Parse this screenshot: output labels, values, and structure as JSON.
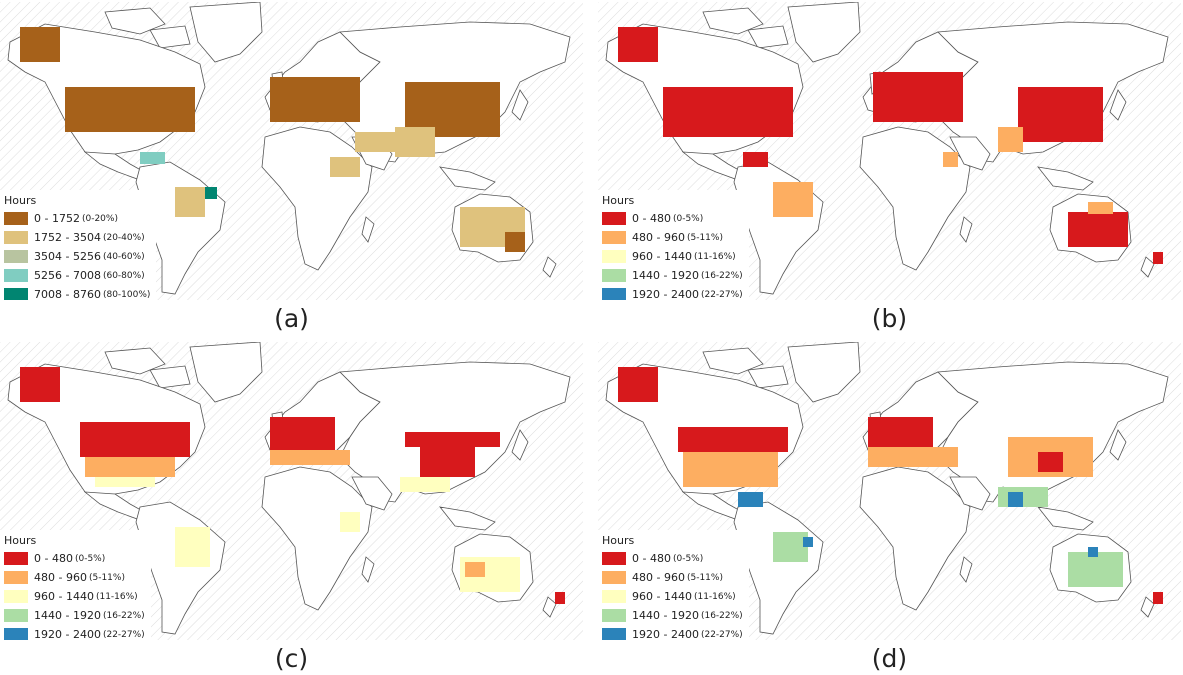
{
  "panels": [
    {
      "caption": "(a)",
      "legend": {
        "title": "Hours",
        "entries": [
          {
            "range": "0 - 1752",
            "pct": "(0-20%)",
            "color": "#a6611a"
          },
          {
            "range": "1752 - 3504",
            "pct": "(20-40%)",
            "color": "#dfc27d"
          },
          {
            "range": "3504 - 5256",
            "pct": "(40-60%)",
            "color": "#b8c4a0"
          },
          {
            "range": "5256 - 7008",
            "pct": "(60-80%)",
            "color": "#80cdc1"
          },
          {
            "range": "7008 - 8760",
            "pct": "(80-100%)",
            "color": "#018571"
          }
        ]
      }
    },
    {
      "caption": "(b)",
      "legend": {
        "title": "Hours",
        "entries": [
          {
            "range": "0 - 480",
            "pct": "(0-5%)",
            "color": "#d7191c"
          },
          {
            "range": "480 - 960",
            "pct": "(5-11%)",
            "color": "#fdae61"
          },
          {
            "range": "960 - 1440",
            "pct": "(11-16%)",
            "color": "#ffffbf"
          },
          {
            "range": "1440 - 1920",
            "pct": "(16-22%)",
            "color": "#abdda4"
          },
          {
            "range": "1920 - 2400",
            "pct": "(22-27%)",
            "color": "#2b83ba"
          }
        ]
      }
    },
    {
      "caption": "(c)",
      "legend": {
        "title": "Hours",
        "entries": [
          {
            "range": "0 - 480",
            "pct": "(0-5%)",
            "color": "#d7191c"
          },
          {
            "range": "480 - 960",
            "pct": "(5-11%)",
            "color": "#fdae61"
          },
          {
            "range": "960 - 1440",
            "pct": "(11-16%)",
            "color": "#ffffbf"
          },
          {
            "range": "1440 - 1920",
            "pct": "(16-22%)",
            "color": "#abdda4"
          },
          {
            "range": "1920 - 2400",
            "pct": "(22-27%)",
            "color": "#2b83ba"
          }
        ]
      }
    },
    {
      "caption": "(d)",
      "legend": {
        "title": "Hours",
        "entries": [
          {
            "range": "0 - 480",
            "pct": "(0-5%)",
            "color": "#d7191c"
          },
          {
            "range": "480 - 960",
            "pct": "(5-11%)",
            "color": "#fdae61"
          },
          {
            "range": "960 - 1440",
            "pct": "(11-16%)",
            "color": "#ffffbf"
          },
          {
            "range": "1440 - 1920",
            "pct": "(16-22%)",
            "color": "#abdda4"
          },
          {
            "range": "1920 - 2400",
            "pct": "(22-27%)",
            "color": "#2b83ba"
          }
        ]
      }
    }
  ]
}
